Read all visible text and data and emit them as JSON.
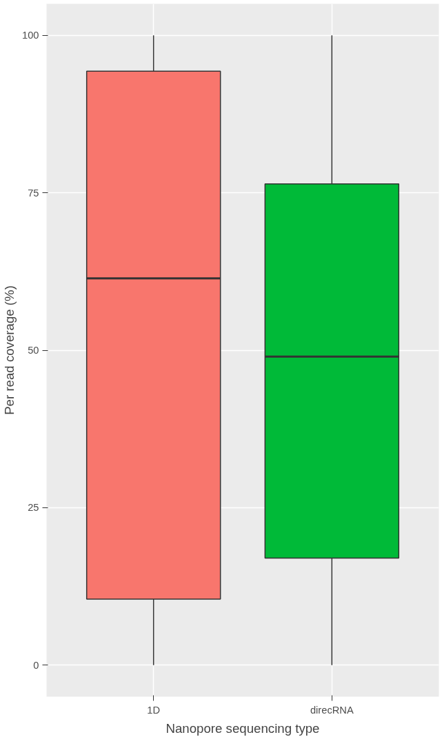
{
  "chart_data": {
    "type": "box",
    "xlabel": "Nanopore sequencing type",
    "ylabel": "Per read coverage (%)",
    "categories": [
      "1D",
      "direcRNA"
    ],
    "colors": [
      "#f8766d",
      "#00ba38"
    ],
    "boxes": [
      {
        "low": 0,
        "q1": 10.5,
        "median": 61.4,
        "q3": 94.3,
        "high": 100
      },
      {
        "low": 0,
        "q1": 17.0,
        "median": 49.0,
        "q3": 76.4,
        "high": 100
      }
    ],
    "ylim": [
      -5,
      105
    ],
    "yticks": [
      0,
      25,
      50,
      75,
      100
    ],
    "grid": true
  }
}
